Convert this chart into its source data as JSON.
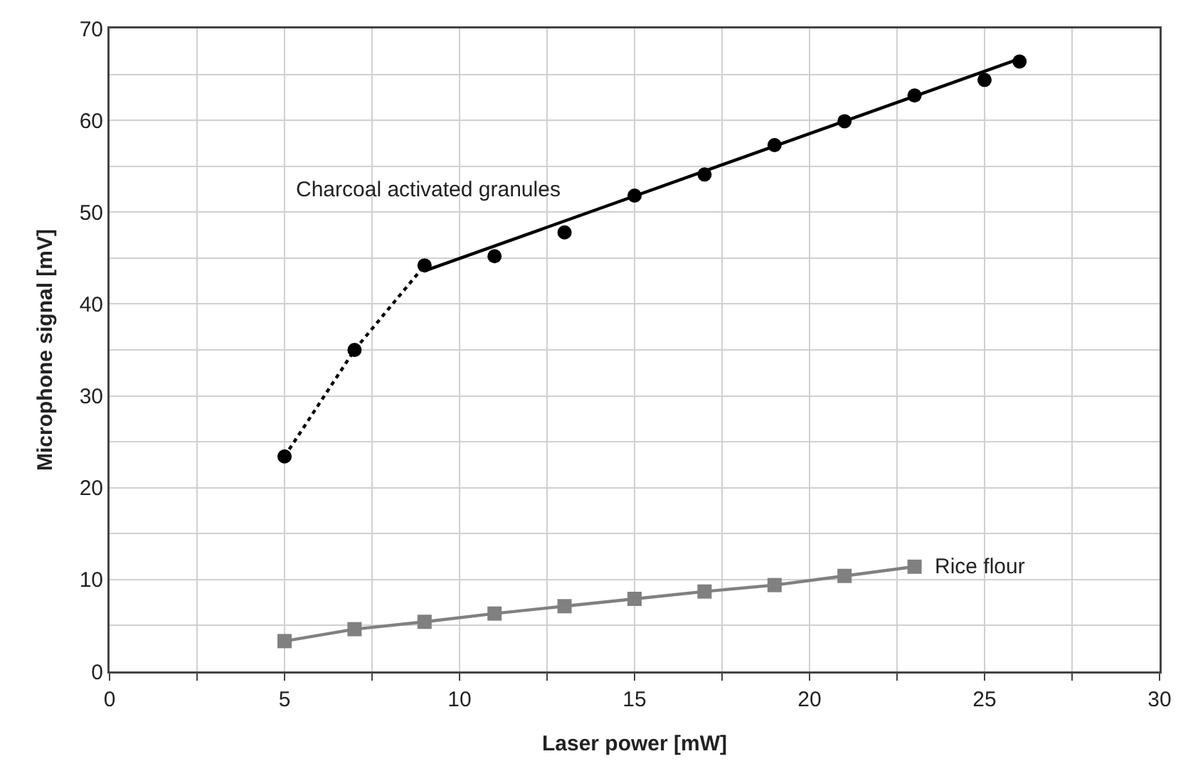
{
  "chart_data": {
    "type": "scatter",
    "xlabel": "Laser power [mW]",
    "ylabel": "Microphone signal [mV]",
    "xlim": [
      0,
      30
    ],
    "xticks": [
      0,
      {
        "value": 2.5,
        "label": null
      },
      5,
      {
        "value": 7.5,
        "label": null
      },
      10,
      {
        "value": 12.5,
        "label": null
      },
      15,
      {
        "value": 17.5,
        "label": null
      },
      20,
      {
        "value": 22.5,
        "label": null
      },
      25,
      {
        "value": 27.5,
        "label": null
      },
      30
    ],
    "ylim": [
      0,
      70
    ],
    "yticks": [
      0,
      {
        "value": 5,
        "label": null
      },
      10,
      {
        "value": 15,
        "label": null
      },
      20,
      {
        "value": 25,
        "label": null
      },
      30,
      {
        "value": 35,
        "label": null
      },
      40,
      {
        "value": 45,
        "label": null
      },
      50,
      {
        "value": 55,
        "label": null
      },
      60,
      {
        "value": 65,
        "label": null
      },
      70
    ],
    "grid": true,
    "legend": false,
    "series": [
      {
        "type": "line",
        "color": "#000000",
        "line_style": "dotted",
        "marker": "none",
        "x": [
          5,
          7,
          9
        ],
        "values": [
          23.4,
          35.0,
          44.2
        ]
      },
      {
        "type": "line",
        "color": "#000000",
        "line_style": "solid",
        "marker": "none",
        "x": [
          9,
          26
        ],
        "values": [
          43.6,
          66.7
        ]
      },
      {
        "name": "Charcoal activated granules",
        "color": "#000000",
        "marker": "circle",
        "x": [
          5,
          7,
          9,
          11,
          13,
          15,
          17,
          19,
          21,
          23,
          25,
          26
        ],
        "values": [
          23.4,
          35.0,
          44.2,
          45.2,
          47.8,
          51.8,
          54.1,
          57.3,
          59.9,
          62.7,
          64.4,
          66.4
        ]
      },
      {
        "type": "line",
        "name": "Rice flour",
        "color": "#808080",
        "line_style": "solid",
        "marker": "square",
        "x": [
          5,
          7,
          9,
          11,
          13,
          15,
          17,
          19,
          21,
          23
        ],
        "values": [
          3.3,
          4.6,
          5.4,
          6.3,
          7.1,
          7.9,
          8.7,
          9.4,
          10.4,
          11.4
        ]
      }
    ]
  }
}
